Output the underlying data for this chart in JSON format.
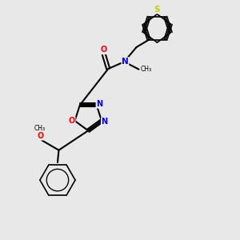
{
  "bg_color": "#e8e8e8",
  "atom_colors": {
    "C": "#000000",
    "N": "#0000ff",
    "O": "#ff0000",
    "S": "#cccc00"
  },
  "bond_color": "#000000"
}
